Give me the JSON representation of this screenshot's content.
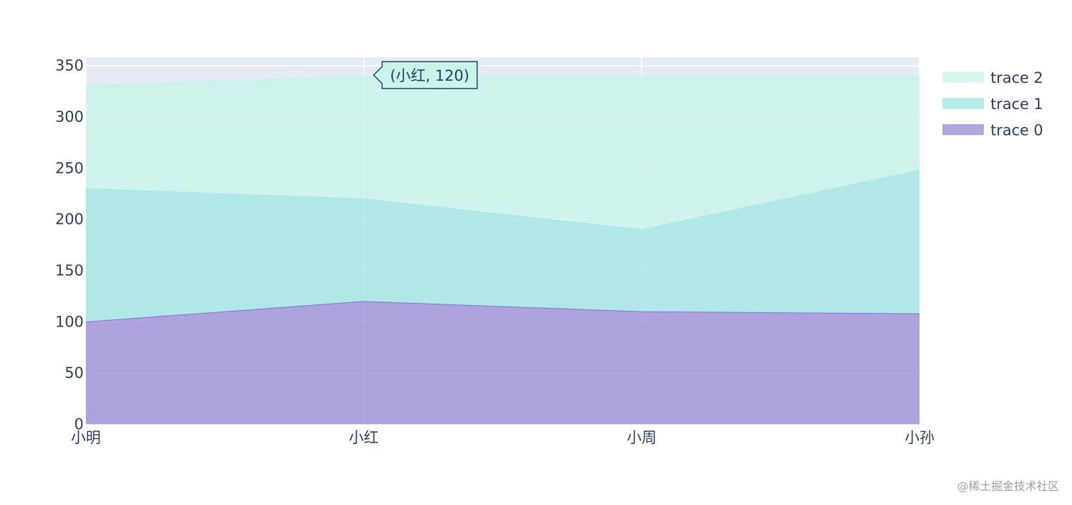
{
  "chart_data": {
    "type": "area",
    "stacked": true,
    "categories": [
      "小明",
      "小红",
      "小周",
      "小孙"
    ],
    "series": [
      {
        "name": "trace 0",
        "values": [
          100,
          120,
          110,
          108
        ],
        "color": "#9b8ad6"
      },
      {
        "name": "trace 1",
        "values": [
          130,
          100,
          80,
          140
        ],
        "color": "#9fe6e1"
      },
      {
        "name": "trace 2",
        "values": [
          100,
          120,
          150,
          92
        ],
        "color": "#c8f4ea"
      }
    ],
    "ylim": [
      0,
      358
    ],
    "yticks": [
      0,
      50,
      100,
      150,
      200,
      250,
      300,
      350
    ],
    "grid": true,
    "plot_bgcolor": "#e5ecf6",
    "legend": {
      "position": "top-right",
      "order": [
        "trace 2",
        "trace 1",
        "trace 0"
      ]
    },
    "hover": {
      "category": "小红",
      "value": 120,
      "text": "(小红, 120)"
    }
  },
  "watermark": "@稀土掘金技术社区"
}
